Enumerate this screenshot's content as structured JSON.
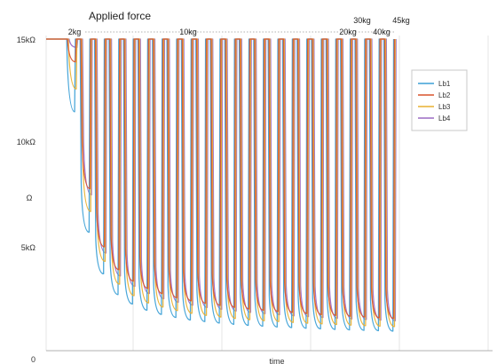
{
  "chart_data": {
    "type": "line",
    "title": "Applied force",
    "xlabel": "time",
    "ylabel": "Ω",
    "ylim": [
      0,
      15000
    ],
    "y_ticks": [
      {
        "value": 0,
        "label": "0"
      },
      {
        "value": 5000,
        "label": "5kΩ"
      },
      {
        "value": 10000,
        "label": "10kΩ"
      },
      {
        "value": 15000,
        "label": "15kΩ"
      }
    ],
    "grid": "vertical",
    "legend_position": "top-right",
    "force_labels": [
      {
        "pulse": 1,
        "label": "2kg",
        "row": "lower"
      },
      {
        "pulse": 9,
        "label": "10kg",
        "row": "lower"
      },
      {
        "pulse": 19,
        "label": "20kg",
        "row": "lower"
      },
      {
        "pulse": 21,
        "label": "30kg",
        "row": "upper"
      },
      {
        "pulse": 22,
        "label": "40kg",
        "row": "lower"
      },
      {
        "pulse": 23,
        "label": "45kg",
        "row": "upper"
      }
    ],
    "pulse_count": 23,
    "baseline_ohm": 15000,
    "series": [
      {
        "name": "Lb1",
        "color": "#3b9fd6",
        "pulse_minima": [
          11500,
          5700,
          3700,
          2700,
          2250,
          1950,
          1750,
          1600,
          1480,
          1400,
          1330,
          1270,
          1220,
          1180,
          1140,
          1110,
          1080,
          1050,
          1020,
          1000,
          980,
          960,
          940
        ]
      },
      {
        "name": "Lb2",
        "color": "#d9542b",
        "pulse_minima": [
          13900,
          7800,
          5000,
          3900,
          3350,
          3000,
          2750,
          2550,
          2400,
          2280,
          2180,
          2090,
          2010,
          1950,
          1890,
          1840,
          1790,
          1740,
          1700,
          1660,
          1620,
          1580,
          1550
        ]
      },
      {
        "name": "Lb3",
        "color": "#e8b030",
        "pulse_minima": [
          12600,
          6700,
          4300,
          3200,
          2650,
          2300,
          2100,
          1930,
          1800,
          1700,
          1620,
          1550,
          1490,
          1440,
          1400,
          1360,
          1320,
          1290,
          1260,
          1230,
          1200,
          1180,
          1160
        ]
      },
      {
        "name": "Lb4",
        "color": "#9b6bc4",
        "pulse_minima": [
          14600,
          7500,
          4700,
          3600,
          3100,
          2750,
          2500,
          2330,
          2190,
          2080,
          1990,
          1910,
          1840,
          1780,
          1730,
          1680,
          1640,
          1600,
          1560,
          1530,
          1500,
          1470,
          1440
        ]
      }
    ]
  }
}
